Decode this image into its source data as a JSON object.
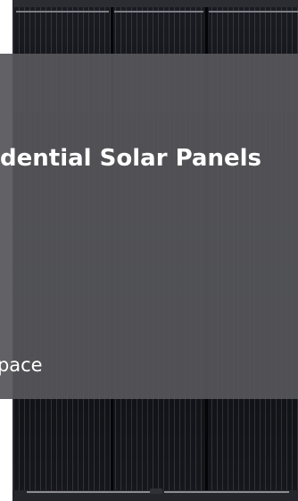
{
  "hero": {
    "title": "Residential Solar Panels",
    "body_fragment": "space"
  },
  "colors": {
    "panel": "#121318",
    "overlay": "#56565a",
    "text": "#ffffff"
  },
  "image": {
    "subject": "black monocrystalline solar panel"
  }
}
